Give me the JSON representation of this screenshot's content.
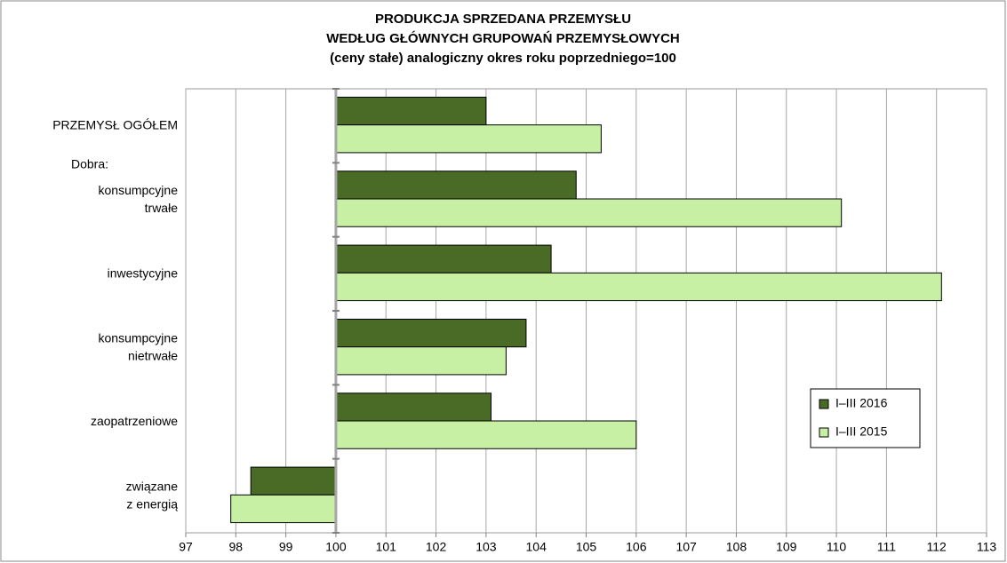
{
  "chart_data": {
    "type": "barh",
    "title": [
      "PRODUKCJA SPRZEDANA PRZEMYSŁU",
      "WEDŁUG GŁÓWNYCH GRUPOWAŃ PRZEMYSŁOWYCH",
      "(ceny stałe)  analogiczny okres roku poprzedniego=100"
    ],
    "annotation": "Dobra:",
    "categories": [
      [
        "PRZEMYSŁ OGÓŁEM"
      ],
      [
        "konsumpcyjne",
        "trwałe"
      ],
      [
        "inwestycyjne"
      ],
      [
        "konsumpcyjne",
        "nietrwałe"
      ],
      [
        "zaopatrzeniowe"
      ],
      [
        "związane",
        "z energią"
      ]
    ],
    "series": [
      {
        "name": "I–III 2016",
        "color": "#4a6b25",
        "values": [
          103.0,
          104.8,
          104.3,
          103.8,
          103.1,
          98.3
        ]
      },
      {
        "name": "I–III 2015",
        "color": "#c8f0a4",
        "values": [
          105.3,
          110.1,
          112.1,
          103.4,
          106.0,
          97.9
        ]
      }
    ],
    "bar_base": 100,
    "xlim": [
      97,
      113
    ],
    "xticks": [
      97,
      98,
      99,
      100,
      101,
      102,
      103,
      104,
      105,
      106,
      107,
      108,
      109,
      110,
      111,
      112,
      113
    ],
    "grid": true,
    "legend": "right"
  }
}
